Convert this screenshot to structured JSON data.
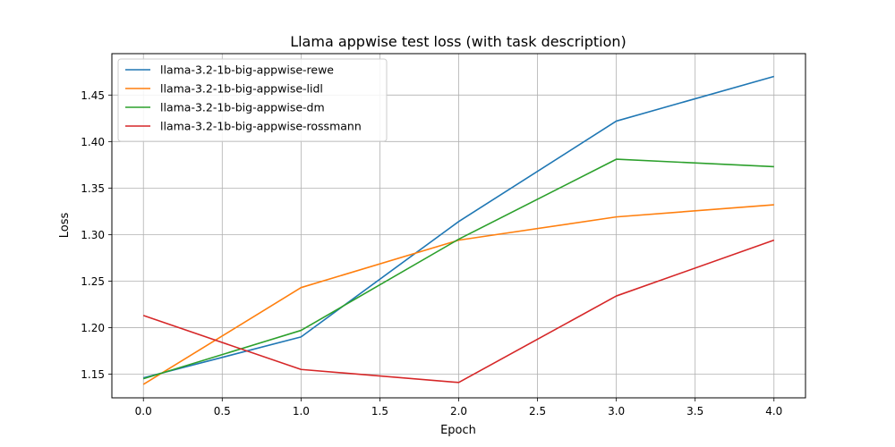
{
  "chart_data": {
    "type": "line",
    "title": "Llama appwise test loss (with task description)",
    "xlabel": "Epoch",
    "ylabel": "Loss",
    "x": [
      0,
      1,
      2,
      3,
      4
    ],
    "xlim": [
      -0.2,
      4.2
    ],
    "ylim": [
      1.1245,
      1.4945
    ],
    "xticks": [
      0.0,
      0.5,
      1.0,
      1.5,
      2.0,
      2.5,
      3.0,
      3.5,
      4.0
    ],
    "xtick_labels": [
      "0.0",
      "0.5",
      "1.0",
      "1.5",
      "2.0",
      "2.5",
      "3.0",
      "3.5",
      "4.0"
    ],
    "yticks": [
      1.15,
      1.2,
      1.25,
      1.3,
      1.35,
      1.4,
      1.45
    ],
    "ytick_labels": [
      "1.15",
      "1.20",
      "1.25",
      "1.30",
      "1.35",
      "1.40",
      "1.45"
    ],
    "grid": true,
    "legend_position": "top-left",
    "series": [
      {
        "name": "llama-3.2-1b-big-appwise-rewe",
        "color": "#1f77b4",
        "values": [
          1.146,
          1.19,
          1.314,
          1.422,
          1.47
        ]
      },
      {
        "name": "llama-3.2-1b-big-appwise-lidl",
        "color": "#ff7f0e",
        "values": [
          1.139,
          1.243,
          1.294,
          1.319,
          1.332
        ]
      },
      {
        "name": "llama-3.2-1b-big-appwise-dm",
        "color": "#2ca02c",
        "values": [
          1.145,
          1.197,
          1.295,
          1.381,
          1.373
        ]
      },
      {
        "name": "llama-3.2-1b-big-appwise-rossmann",
        "color": "#d62728",
        "values": [
          1.213,
          1.155,
          1.141,
          1.234,
          1.294
        ]
      }
    ]
  }
}
